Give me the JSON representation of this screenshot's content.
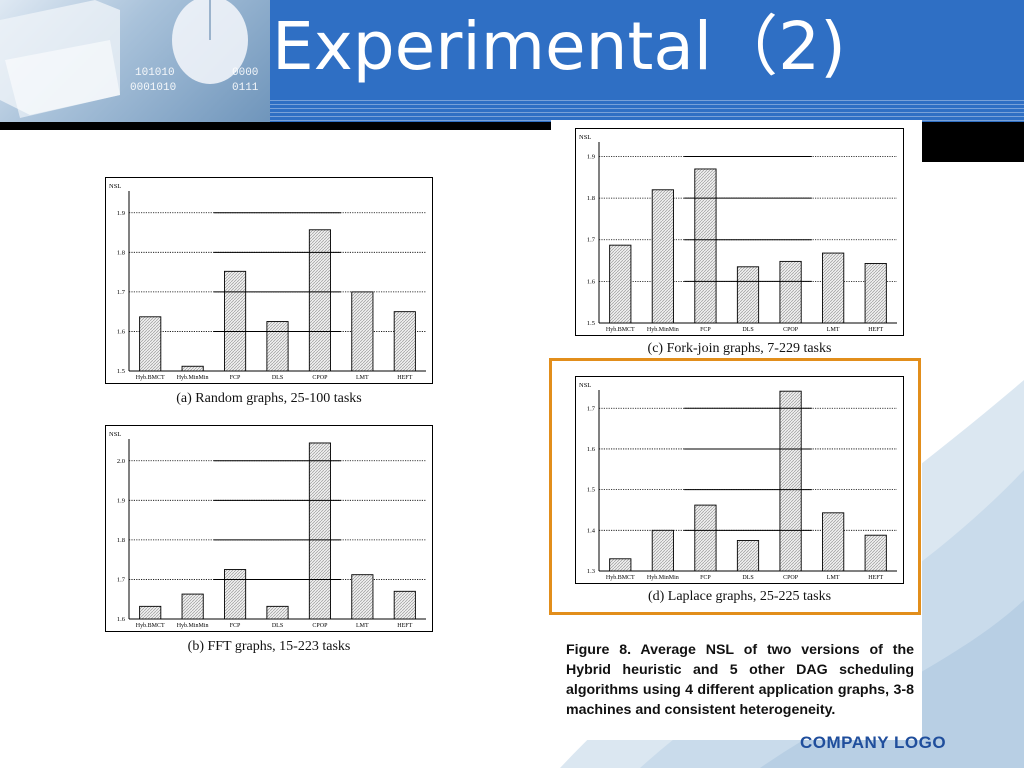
{
  "slide": {
    "title": "Experimental（2)",
    "figure_caption": "Figure 8. Average NSL of two versions of the Hybrid heuristic and 5 other DAG scheduling algorithms using 4 different application graphs, 3-8 machines and consistent heterogeneity.",
    "logo": "COMPANY LOGO"
  },
  "chart_data": [
    {
      "id": "a",
      "type": "bar",
      "caption": "(a) Random graphs, 25-100 tasks",
      "ylabel": "NSL",
      "categories": [
        "Hyb.BMCT",
        "Hyb.MinMin",
        "FCP",
        "DLS",
        "CPOP",
        "LMT",
        "HEFT"
      ],
      "values": [
        1.637,
        1.512,
        1.752,
        1.625,
        1.857,
        1.7,
        1.65
      ],
      "ylim": [
        1.5,
        1.95
      ],
      "yticks": [
        1.5,
        1.6,
        1.7,
        1.8,
        1.9
      ],
      "ytick_labels": [
        "1.5",
        "1.6",
        "1.7",
        "1.8",
        "1.9"
      ],
      "grid": true
    },
    {
      "id": "b",
      "type": "bar",
      "caption": "(b) FFT graphs, 15-223 tasks",
      "ylabel": "NSL",
      "categories": [
        "Hyb.BMCT",
        "Hyb.MinMin",
        "FCP",
        "DLS",
        "CPOP",
        "LMT",
        "HEFT"
      ],
      "values": [
        1.632,
        1.663,
        1.725,
        1.632,
        2.045,
        1.712,
        1.67
      ],
      "ylim": [
        1.6,
        2.05
      ],
      "yticks": [
        1.6,
        1.7,
        1.8,
        1.9,
        2.0
      ],
      "ytick_labels": [
        "1.6",
        "1.7",
        "1.8",
        "1.9",
        "2.0"
      ],
      "grid": true
    },
    {
      "id": "c",
      "type": "bar",
      "caption": "(c) Fork-join graphs, 7-229 tasks",
      "ylabel": "NSL",
      "categories": [
        "Hyb.BMCT",
        "Hyb.MinMin",
        "FCP",
        "DLS",
        "CPOP",
        "LMT",
        "HEFT"
      ],
      "values": [
        1.687,
        1.82,
        1.87,
        1.635,
        1.648,
        1.668,
        1.643
      ],
      "ylim": [
        1.5,
        1.93
      ],
      "yticks": [
        1.5,
        1.6,
        1.7,
        1.8,
        1.9
      ],
      "ytick_labels": [
        "1.5",
        "1.6",
        "1.7",
        "1.8",
        "1.9"
      ],
      "grid": true
    },
    {
      "id": "d",
      "type": "bar",
      "caption": "(d) Laplace graphs, 25-225 tasks",
      "ylabel": "NSL",
      "categories": [
        "Hyb.BMCT",
        "Hyb.MinMin",
        "FCP",
        "DLS",
        "CPOP",
        "LMT",
        "HEFT"
      ],
      "values": [
        1.33,
        1.4,
        1.462,
        1.375,
        1.742,
        1.443,
        1.388
      ],
      "ylim": [
        1.3,
        1.74
      ],
      "yticks": [
        1.3,
        1.4,
        1.5,
        1.6,
        1.7
      ],
      "ytick_labels": [
        "1.3",
        "1.4",
        "1.5",
        "1.6",
        "1.7"
      ],
      "grid": true
    }
  ]
}
